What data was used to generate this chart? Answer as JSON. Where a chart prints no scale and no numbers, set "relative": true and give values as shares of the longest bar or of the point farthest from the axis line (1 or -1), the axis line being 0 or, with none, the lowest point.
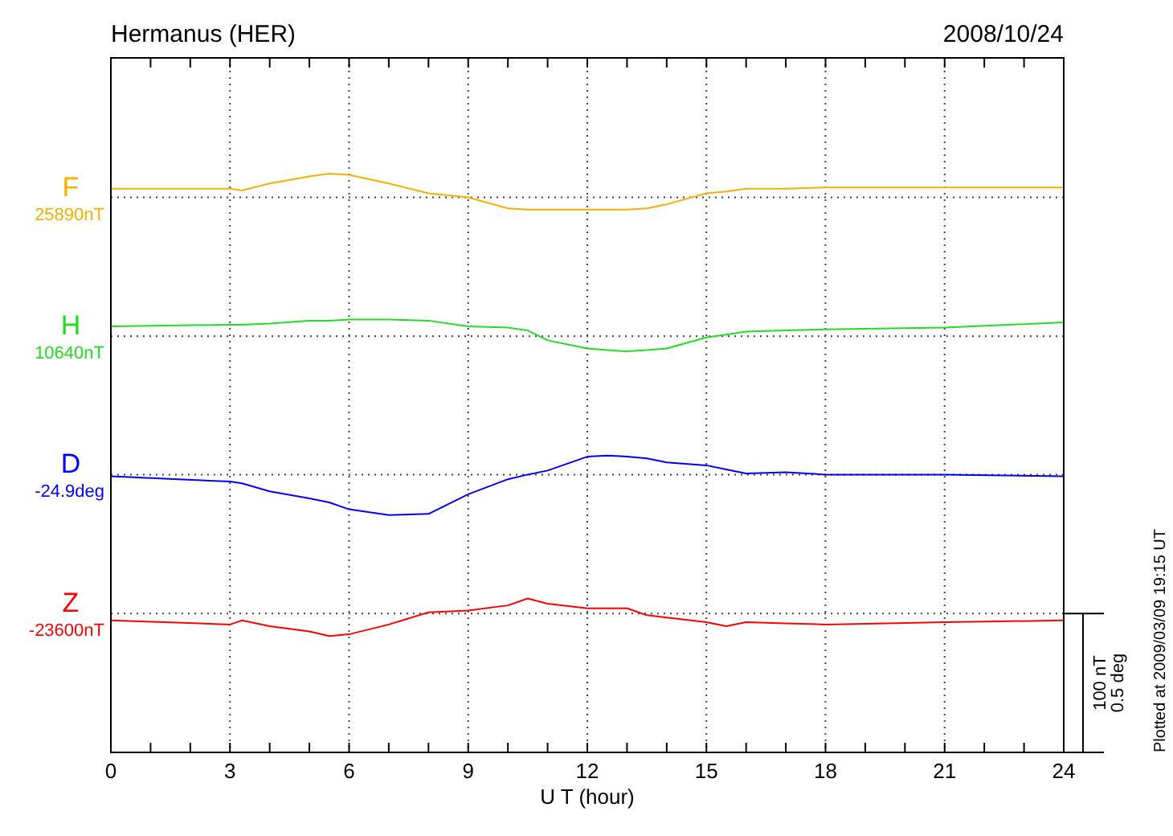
{
  "chart_data": {
    "type": "line",
    "title": "Hermanus (HER)",
    "subtitle": "2008/10/24",
    "xlabel": "U T (hour)",
    "relative": true,
    "x": [
      0,
      3,
      3.3,
      4,
      5,
      5.5,
      6,
      7,
      8,
      9,
      10,
      10.5,
      11,
      12,
      12.5,
      13,
      13.5,
      14,
      15,
      15.5,
      16,
      17,
      18,
      21,
      24
    ],
    "series": [
      {
        "name": "F",
        "color": "#f5b000",
        "values": [
          0.974,
          0.974,
          0.971,
          0.983,
          0.995,
          1,
          0.998,
          0.983,
          0.966,
          0.959,
          0.94,
          0.938,
          0.938,
          0.938,
          0.938,
          0.938,
          0.94,
          0.947,
          0.966,
          0.969,
          0.974,
          0.974,
          0.976,
          0.976,
          0.976
        ]
      },
      {
        "name": "H",
        "color": "#22dd22",
        "values": [
          0.736,
          0.739,
          0.739,
          0.741,
          0.746,
          0.746,
          0.748,
          0.748,
          0.746,
          0.736,
          0.734,
          0.729,
          0.712,
          0.698,
          0.695,
          0.693,
          0.695,
          0.698,
          0.717,
          0.722,
          0.727,
          0.729,
          0.731,
          0.734,
          0.743
        ]
      },
      {
        "name": "D",
        "color": "#0000ff",
        "values": [
          0.477,
          0.468,
          0.465,
          0.451,
          0.439,
          0.432,
          0.42,
          0.41,
          0.412,
          0.446,
          0.472,
          0.48,
          0.487,
          0.511,
          0.513,
          0.511,
          0.508,
          0.501,
          0.496,
          0.489,
          0.482,
          0.484,
          0.48,
          0.48,
          0.477
        ]
      },
      {
        "name": "Z",
        "color": "#ff0000",
        "values": [
          0.228,
          0.221,
          0.228,
          0.218,
          0.209,
          0.201,
          0.204,
          0.221,
          0.242,
          0.245,
          0.254,
          0.266,
          0.257,
          0.249,
          0.249,
          0.249,
          0.237,
          0.233,
          0.225,
          0.218,
          0.225,
          0.223,
          0.221,
          0.225,
          0.228
        ]
      }
    ],
    "xlim": [
      0,
      24
    ],
    "xticks": [
      0,
      {
        "value": 1,
        "label": null
      },
      {
        "value": 2,
        "label": null
      },
      3,
      {
        "value": 4,
        "label": null
      },
      {
        "value": 5,
        "label": null
      },
      6,
      {
        "value": 7,
        "label": null
      },
      {
        "value": 8,
        "label": null
      },
      9,
      {
        "value": 10,
        "label": null
      },
      {
        "value": 11,
        "label": null
      },
      12,
      {
        "value": 13,
        "label": null
      },
      {
        "value": 14,
        "label": null
      },
      15,
      {
        "value": 16,
        "label": null
      },
      {
        "value": 17,
        "label": null
      },
      18,
      {
        "value": 19,
        "label": null
      },
      {
        "value": 20,
        "label": null
      },
      21,
      {
        "value": 22,
        "label": null
      },
      {
        "value": 23,
        "label": null
      },
      24
    ],
    "grid": "x",
    "line_style": "solid",
    "ref_lines": [
      {
        "axis": "y",
        "value": 0.959,
        "label": "25890nT",
        "line_style": "dotted"
      },
      {
        "axis": "y",
        "value": 0.719,
        "label": "10640nT",
        "line_style": "dotted"
      },
      {
        "axis": "y",
        "value": 0.48,
        "label": "-24.9deg",
        "line_style": "dotted"
      },
      {
        "axis": "y",
        "value": 0.24,
        "label": "-23600nT",
        "line_style": "dotted"
      }
    ],
    "annotations": [
      "100 nT",
      "0.5 deg",
      "Plotted at 2009/03/09 19:15 UT"
    ]
  }
}
